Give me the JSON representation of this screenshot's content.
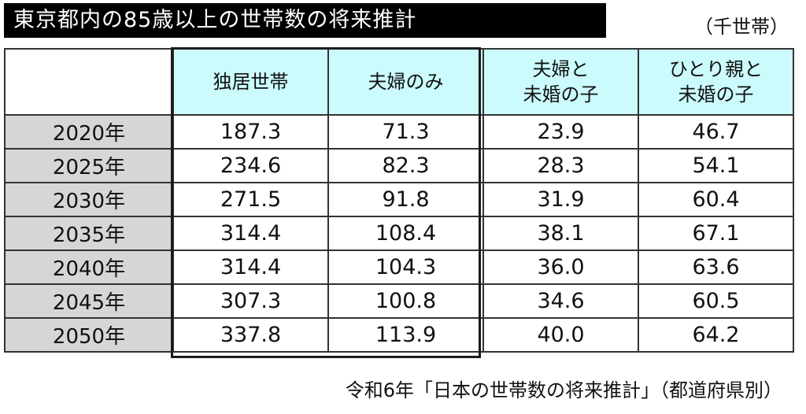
{
  "title": "東京都内の85歳以上の世帯数の将来推計",
  "unit": "（千世帯）",
  "source": "令和6年「日本の世帯数の将来推計」（都道府県別）",
  "colors": {
    "header_bg": "#ccfbfd",
    "row_header_bg": "#d6d6d6",
    "title_bg": "#000000"
  },
  "chart_data": {
    "type": "table",
    "columns": [
      [
        "独居世帯"
      ],
      [
        "夫婦のみ"
      ],
      [
        "夫婦と",
        "未婚の子"
      ],
      [
        "ひとり親と",
        "未婚の子"
      ]
    ],
    "rows": [
      {
        "year": "2020年",
        "values": [
          "187.3",
          "71.3",
          "23.9",
          "46.7"
        ]
      },
      {
        "year": "2025年",
        "values": [
          "234.6",
          "82.3",
          "28.3",
          "54.1"
        ]
      },
      {
        "year": "2030年",
        "values": [
          "271.5",
          "91.8",
          "31.9",
          "60.4"
        ]
      },
      {
        "year": "2035年",
        "values": [
          "314.4",
          "108.4",
          "38.1",
          "67.1"
        ]
      },
      {
        "year": "2040年",
        "values": [
          "314.4",
          "104.3",
          "36.0",
          "63.6"
        ]
      },
      {
        "year": "2045年",
        "values": [
          "307.3",
          "100.8",
          "34.6",
          "60.5"
        ]
      },
      {
        "year": "2050年",
        "values": [
          "337.8",
          "113.9",
          "40.0",
          "64.2"
        ]
      }
    ]
  }
}
